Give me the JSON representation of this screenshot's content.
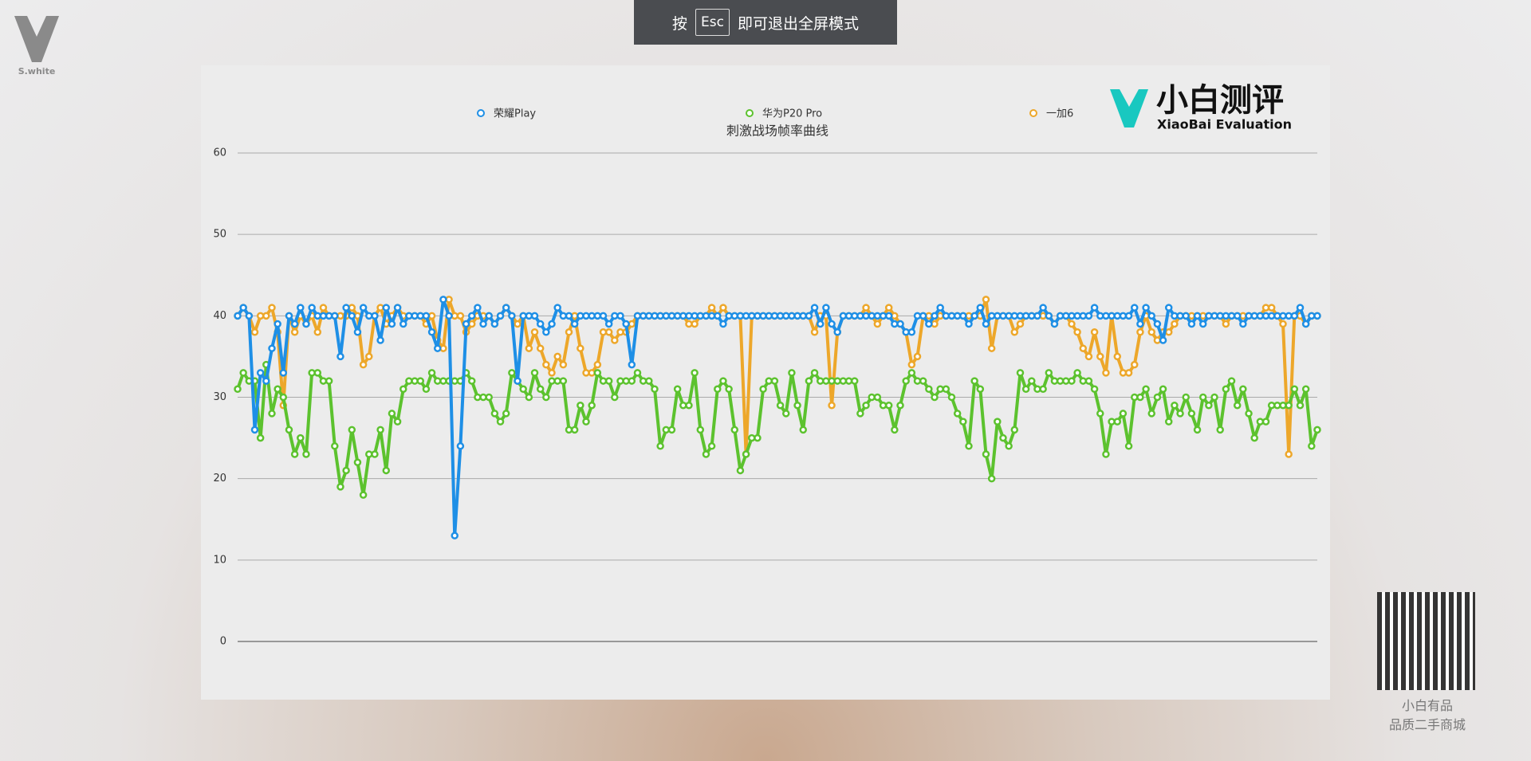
{
  "fullscreen_hint": {
    "prefix": "按",
    "key": "Esc",
    "suffix": "即可退出全屏模式"
  },
  "watermark": "S.white",
  "brand": {
    "name": "小白测评",
    "subtitle": "XiaoBai Evaluation"
  },
  "qr_caption": [
    "小白有品",
    "品质二手商城"
  ],
  "chart_data": {
    "type": "line",
    "title": "刺激战场帧率曲线",
    "ylim": [
      0,
      60
    ],
    "yticks": [
      0,
      10,
      20,
      30,
      40,
      50,
      60
    ],
    "grid": true,
    "series": [
      {
        "name": "荣耀Play",
        "color": "#1e8fe6",
        "values": [
          40,
          41,
          40,
          26,
          33,
          32,
          36,
          39,
          33,
          40,
          39,
          41,
          39,
          41,
          40,
          40,
          40,
          40,
          35,
          41,
          40,
          38,
          41,
          40,
          40,
          37,
          41,
          39,
          41,
          39,
          40,
          40,
          40,
          40,
          38,
          36,
          42,
          40,
          13,
          24,
          39,
          40,
          41,
          39,
          40,
          39,
          40,
          41,
          40,
          32,
          40,
          40,
          40,
          39,
          38,
          39,
          41,
          40,
          40,
          39,
          40,
          40,
          40,
          40,
          40,
          39,
          40,
          40,
          39,
          34,
          40,
          40,
          40,
          40,
          40,
          40,
          40,
          40,
          40,
          40,
          40,
          40,
          40,
          40,
          40,
          39,
          40,
          40,
          40,
          40,
          40,
          40,
          40,
          40,
          40,
          40,
          40,
          40,
          40,
          40,
          40,
          41,
          39,
          41,
          39,
          38,
          40,
          40,
          40,
          40,
          40,
          40,
          40,
          40,
          40,
          39,
          39,
          38,
          38,
          40,
          40,
          39,
          40,
          41,
          40,
          40,
          40,
          40,
          39,
          40,
          41,
          39,
          40,
          40,
          40,
          40,
          40,
          40,
          40,
          40,
          40,
          41,
          40,
          39,
          40,
          40,
          40,
          40,
          40,
          40,
          41,
          40,
          40,
          40,
          40,
          40,
          40,
          41,
          39,
          41,
          40,
          39,
          37,
          41,
          40,
          40,
          40,
          39,
          40,
          39,
          40,
          40,
          40,
          40,
          40,
          40,
          39,
          40,
          40,
          40,
          40,
          40,
          40,
          40,
          40,
          40,
          41,
          39,
          40,
          40
        ]
      },
      {
        "name": "华为P20 Pro",
        "color": "#5cc22e",
        "values": [
          31,
          33,
          32,
          32,
          25,
          34,
          28,
          31,
          30,
          26,
          23,
          25,
          23,
          33,
          33,
          32,
          32,
          24,
          19,
          21,
          26,
          22,
          18,
          23,
          23,
          26,
          21,
          28,
          27,
          31,
          32,
          32,
          32,
          31,
          33,
          32,
          32,
          32,
          32,
          32,
          33,
          32,
          30,
          30,
          30,
          28,
          27,
          28,
          33,
          32,
          31,
          30,
          33,
          31,
          30,
          32,
          32,
          32,
          26,
          26,
          29,
          27,
          29,
          33,
          32,
          32,
          30,
          32,
          32,
          32,
          33,
          32,
          32,
          31,
          24,
          26,
          26,
          31,
          29,
          29,
          33,
          26,
          23,
          24,
          31,
          32,
          31,
          26,
          21,
          23,
          25,
          25,
          31,
          32,
          32,
          29,
          28,
          33,
          29,
          26,
          32,
          33,
          32,
          32,
          32,
          32,
          32,
          32,
          32,
          28,
          29,
          30,
          30,
          29,
          29,
          26,
          29,
          32,
          33,
          32,
          32,
          31,
          30,
          31,
          31,
          30,
          28,
          27,
          24,
          32,
          31,
          23,
          20,
          27,
          25,
          24,
          26,
          33,
          31,
          32,
          31,
          31,
          33,
          32,
          32,
          32,
          32,
          33,
          32,
          32,
          31,
          28,
          23,
          27,
          27,
          28,
          24,
          30,
          30,
          31,
          28,
          30,
          31,
          27,
          29,
          28,
          30,
          28,
          26,
          30,
          29,
          30,
          26,
          31,
          32,
          29,
          31,
          28,
          25,
          27,
          27,
          29,
          29,
          29,
          29,
          31,
          29,
          31,
          24,
          26
        ]
      },
      {
        "name": "一加6",
        "color": "#eda72a",
        "values": [
          40,
          41,
          40,
          38,
          40,
          40,
          41,
          38,
          29,
          40,
          38,
          40,
          39,
          40,
          38,
          41,
          40,
          40,
          40,
          40,
          41,
          40,
          34,
          35,
          40,
          41,
          39,
          40,
          41,
          40,
          40,
          40,
          40,
          39,
          40,
          37,
          36,
          42,
          40,
          40,
          38,
          39,
          40,
          40,
          40,
          39,
          40,
          41,
          40,
          39,
          40,
          36,
          38,
          36,
          34,
          33,
          35,
          34,
          38,
          40,
          36,
          33,
          33,
          34,
          38,
          38,
          37,
          38,
          38,
          39,
          40,
          40,
          40,
          40,
          40,
          40,
          40,
          40,
          40,
          39,
          39,
          40,
          40,
          41,
          40,
          41,
          40,
          40,
          40,
          23,
          40,
          40,
          40,
          40,
          40,
          40,
          40,
          40,
          40,
          40,
          40,
          38,
          40,
          40,
          29,
          38,
          40,
          40,
          40,
          40,
          41,
          40,
          39,
          40,
          41,
          40,
          39,
          38,
          34,
          35,
          40,
          40,
          39,
          40,
          40,
          40,
          40,
          40,
          40,
          40,
          40,
          42,
          36,
          40,
          40,
          40,
          38,
          39,
          40,
          40,
          40,
          40,
          40,
          39,
          40,
          40,
          39,
          38,
          36,
          35,
          38,
          35,
          33,
          40,
          35,
          33,
          33,
          34,
          38,
          40,
          38,
          37,
          38,
          38,
          39,
          40,
          40,
          40,
          40,
          40,
          40,
          40,
          40,
          39,
          40,
          40,
          40,
          40,
          40,
          40,
          41,
          41,
          40,
          39,
          23,
          40,
          40,
          39,
          40,
          40
        ]
      }
    ]
  }
}
